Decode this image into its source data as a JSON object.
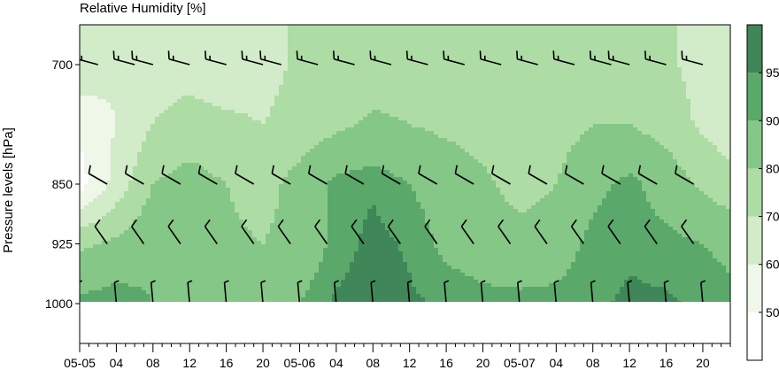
{
  "chart_data": {
    "type": "heatmap",
    "title": "Relative Humidity [%]",
    "ylabel": "Pressure levels [hPa]",
    "y_ticks": [
      {
        "value": 700,
        "label": "700"
      },
      {
        "value": 850,
        "label": "850"
      },
      {
        "value": 925,
        "label": "925"
      },
      {
        "value": 1000,
        "label": "1000"
      }
    ],
    "ylim": [
      1050,
      650
    ],
    "x_ticks": [
      {
        "hour": 0,
        "label": "05-05"
      },
      {
        "hour": 4,
        "label": "04"
      },
      {
        "hour": 8,
        "label": "08"
      },
      {
        "hour": 12,
        "label": "12"
      },
      {
        "hour": 16,
        "label": "16"
      },
      {
        "hour": 20,
        "label": "20"
      },
      {
        "hour": 24,
        "label": "05-06"
      },
      {
        "hour": 28,
        "label": "04"
      },
      {
        "hour": 32,
        "label": "08"
      },
      {
        "hour": 36,
        "label": "12"
      },
      {
        "hour": 40,
        "label": "16"
      },
      {
        "hour": 44,
        "label": "20"
      },
      {
        "hour": 48,
        "label": "05-07"
      },
      {
        "hour": 52,
        "label": "04"
      },
      {
        "hour": 56,
        "label": "08"
      },
      {
        "hour": 60,
        "label": "12"
      },
      {
        "hour": 64,
        "label": "16"
      },
      {
        "hour": 68,
        "label": "20"
      }
    ],
    "xlim": [
      0,
      71
    ],
    "colorbar": {
      "levels": [
        40,
        50,
        60,
        70,
        80,
        90,
        95,
        100
      ],
      "tick_labels": [
        "50",
        "60",
        "70",
        "80",
        "90",
        "95"
      ],
      "colors": [
        "#ffffff",
        "#eef7e8",
        "#d2ebc8",
        "#aedca5",
        "#85c786",
        "#5aa86a",
        "#3f8658"
      ]
    },
    "levels": [
      700,
      775,
      850,
      925,
      1000
    ],
    "times": [
      0,
      4,
      8,
      12,
      16,
      20,
      24,
      28,
      32,
      36,
      40,
      44,
      48,
      52,
      56,
      60,
      64,
      68,
      71
    ],
    "rh": [
      [
        68,
        62,
        66,
        66,
        64,
        66,
        72,
        72,
        74,
        74,
        72,
        70,
        70,
        72,
        74,
        74,
        72,
        66,
        64
      ],
      [
        52,
        60,
        70,
        74,
        72,
        70,
        74,
        78,
        82,
        80,
        78,
        76,
        74,
        76,
        80,
        80,
        76,
        68,
        64
      ],
      [
        46,
        64,
        80,
        84,
        80,
        76,
        84,
        92,
        94,
        90,
        86,
        82,
        76,
        80,
        88,
        92,
        86,
        78,
        74
      ],
      [
        78,
        82,
        88,
        86,
        82,
        80,
        84,
        92,
        97,
        94,
        88,
        86,
        84,
        86,
        92,
        94,
        92,
        90,
        88
      ],
      [
        92,
        94,
        90,
        84,
        86,
        88,
        90,
        96,
        98,
        96,
        94,
        92,
        92,
        92,
        94,
        96,
        96,
        94,
        92
      ]
    ],
    "wind_barbs": [
      {
        "level": 700,
        "hours": [
          0,
          2,
          6,
          8,
          12,
          16,
          20,
          22,
          26,
          30,
          34,
          38,
          42,
          46,
          50,
          54,
          58,
          60,
          64,
          68
        ],
        "dir": 255,
        "speed": 15
      },
      {
        "level": 850,
        "hours": [
          0,
          3,
          7,
          11,
          15,
          19,
          23,
          27,
          31,
          35,
          39,
          43,
          47,
          51,
          55,
          59,
          63,
          67
        ],
        "dir": 240,
        "speed": 10
      },
      {
        "level": 925,
        "hours": [
          0,
          3,
          7,
          11,
          15,
          19,
          23,
          27,
          31,
          35,
          39,
          43,
          47,
          51,
          55,
          59,
          63,
          67
        ],
        "dir": 215,
        "speed": 10
      },
      {
        "level": 1000,
        "hours": [
          0,
          4,
          8,
          12,
          16,
          20,
          24,
          28,
          32,
          36,
          40,
          44,
          48,
          52,
          56,
          60,
          64,
          68
        ],
        "dir": 185,
        "speed": 5
      }
    ]
  }
}
